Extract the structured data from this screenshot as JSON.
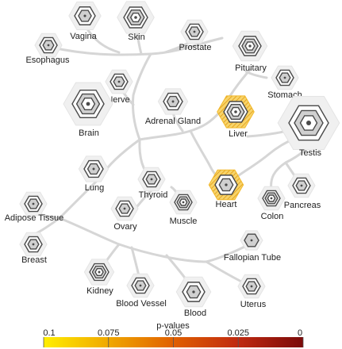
{
  "tree": {
    "tissues": [
      {
        "key": "vagina",
        "label": "Vagina",
        "rings": 2,
        "highlight": false
      },
      {
        "key": "skin",
        "label": "Skin",
        "rings": 3,
        "highlight": false
      },
      {
        "key": "prostate",
        "label": "Prostate",
        "rings": 2,
        "highlight": false
      },
      {
        "key": "esophagus",
        "label": "Esophagus",
        "rings": 2,
        "highlight": false
      },
      {
        "key": "pituitary",
        "label": "Pituitary",
        "rings": 3,
        "highlight": false
      },
      {
        "key": "stomach",
        "label": "Stomach",
        "rings": 2,
        "highlight": false
      },
      {
        "key": "nerve",
        "label": "Nerve",
        "rings": 2,
        "highlight": false
      },
      {
        "key": "brain",
        "label": "Brain",
        "rings": 3,
        "highlight": false
      },
      {
        "key": "adrenal",
        "label": "Adrenal Gland",
        "rings": 2,
        "highlight": false
      },
      {
        "key": "liver",
        "label": "Liver",
        "rings": 3,
        "highlight": true
      },
      {
        "key": "testis",
        "label": "Testis",
        "rings": 3,
        "highlight": false
      },
      {
        "key": "lung",
        "label": "Lung",
        "rings": 2,
        "highlight": false
      },
      {
        "key": "thyroid",
        "label": "Thyroid",
        "rings": 2,
        "highlight": false
      },
      {
        "key": "heart",
        "label": "Heart",
        "rings": 2,
        "highlight": true
      },
      {
        "key": "colon",
        "label": "Colon",
        "rings": 3,
        "highlight": false
      },
      {
        "key": "pancreas",
        "label": "Pancreas",
        "rings": 2,
        "highlight": false
      },
      {
        "key": "muscle",
        "label": "Muscle",
        "rings": 3,
        "highlight": false
      },
      {
        "key": "ovary",
        "label": "Ovary",
        "rings": 2,
        "highlight": false
      },
      {
        "key": "adipose",
        "label": "Adipose Tissue",
        "rings": 2,
        "highlight": false
      },
      {
        "key": "breast",
        "label": "Breast",
        "rings": 2,
        "highlight": false
      },
      {
        "key": "fallopian",
        "label": "Fallopian Tube",
        "rings": 1,
        "highlight": false
      },
      {
        "key": "kidney",
        "label": "Kidney",
        "rings": 3,
        "highlight": false
      },
      {
        "key": "bloodvessel",
        "label": "Blood Vessel",
        "rings": 2,
        "highlight": false
      },
      {
        "key": "blood",
        "label": "Blood",
        "rings": 2,
        "highlight": false
      },
      {
        "key": "uterus",
        "label": "Uterus",
        "rings": 2,
        "highlight": false
      }
    ]
  },
  "legend": {
    "title": "p-values",
    "ticks": [
      "0.1",
      "0.075",
      "0.05",
      "0.025",
      "0"
    ],
    "colors": [
      "#ffee00",
      "#f0a800",
      "#e06000",
      "#c02a10",
      "#7a0a0a"
    ]
  },
  "colors": {
    "branch": "#d6d6d6",
    "hex_outline": "#4a4a4a",
    "hex_fill": "#d0d0d0",
    "hex_halo": "#f0f0f0",
    "highlight": "#f2b82a"
  }
}
